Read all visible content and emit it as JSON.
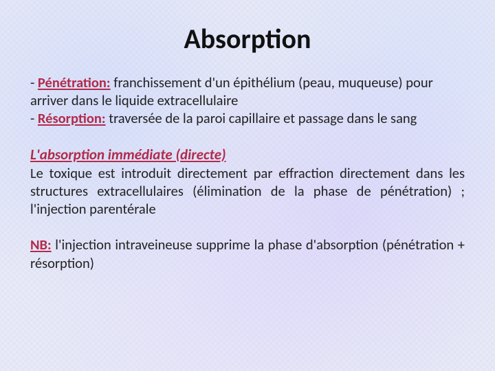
{
  "colors": {
    "accent": "#b22a4a",
    "text": "#1a1a1a",
    "background_base": "#e8eaf6"
  },
  "typography": {
    "title_fontsize_pt": 30,
    "body_fontsize_pt": 15,
    "font_family": "Calibri"
  },
  "title": "Absorption",
  "defs": {
    "penetration": {
      "dash": "- ",
      "term": "Pénétration:",
      "rest": " franchissement d'un épithélium (peau, muqueuse) pour arriver dans le liquide extracellulaire"
    },
    "resorption": {
      "dash": "- ",
      "term": "Résorption:",
      "rest": " traversée de la paroi capillaire et passage dans le sang"
    }
  },
  "section": {
    "heading": "L'absorption immédiate (directe)",
    "body": "Le toxique est introduit directement par effraction directement dans les structures extracellulaires (élimination de la phase de pénétration) ; l'injection parentérale"
  },
  "note": {
    "label": "NB:",
    "body": " l'injection intraveineuse supprime la phase d'absorption (pénétration + résorption)"
  }
}
